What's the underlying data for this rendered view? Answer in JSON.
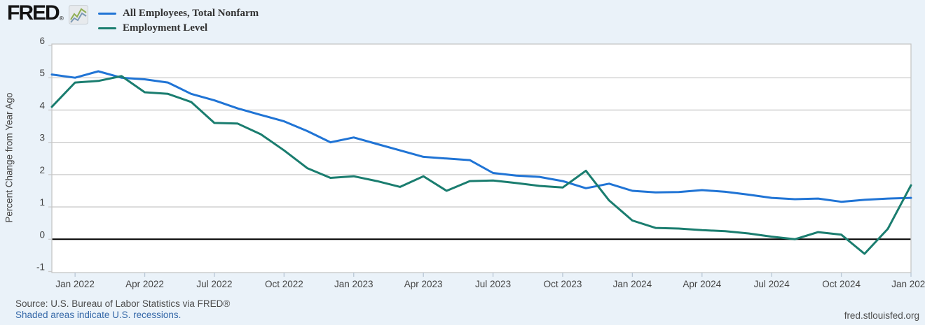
{
  "header": {
    "logo_text": "FRED",
    "logo_reg_mark": "®"
  },
  "chart_data": {
    "type": "line",
    "title": "",
    "xlabel": "",
    "ylabel": "Percent Change from Year Ago",
    "ylim": [
      -1,
      6
    ],
    "grid": true,
    "zero_line": true,
    "legend_position": "top-left",
    "categories": [
      "Dec 2021",
      "Jan 2022",
      "Feb 2022",
      "Mar 2022",
      "Apr 2022",
      "May 2022",
      "Jun 2022",
      "Jul 2022",
      "Aug 2022",
      "Sep 2022",
      "Oct 2022",
      "Nov 2022",
      "Dec 2022",
      "Jan 2023",
      "Feb 2023",
      "Mar 2023",
      "Apr 2023",
      "May 2023",
      "Jun 2023",
      "Jul 2023",
      "Aug 2023",
      "Sep 2023",
      "Oct 2023",
      "Nov 2023",
      "Dec 2023",
      "Jan 2024",
      "Feb 2024",
      "Mar 2024",
      "Apr 2024",
      "May 2024",
      "Jun 2024",
      "Jul 2024",
      "Aug 2024",
      "Sep 2024",
      "Oct 2024",
      "Nov 2024",
      "Dec 2024",
      "Jan 2025"
    ],
    "x_ticks": [
      {
        "index": 1,
        "label": "Jan 2022"
      },
      {
        "index": 4,
        "label": "Apr 2022"
      },
      {
        "index": 7,
        "label": "Jul 2022"
      },
      {
        "index": 10,
        "label": "Oct 2022"
      },
      {
        "index": 13,
        "label": "Jan 2023"
      },
      {
        "index": 16,
        "label": "Apr 2023"
      },
      {
        "index": 19,
        "label": "Jul 2023"
      },
      {
        "index": 22,
        "label": "Oct 2023"
      },
      {
        "index": 25,
        "label": "Jan 2024"
      },
      {
        "index": 28,
        "label": "Apr 2024"
      },
      {
        "index": 31,
        "label": "Jul 2024"
      },
      {
        "index": 34,
        "label": "Oct 2024"
      },
      {
        "index": 37,
        "label": "Jan 2025"
      }
    ],
    "y_ticks": [
      {
        "value": 6,
        "label": "6"
      },
      {
        "value": 5,
        "label": "5"
      },
      {
        "value": 4,
        "label": "4"
      },
      {
        "value": 3,
        "label": "3"
      },
      {
        "value": 2,
        "label": "2"
      },
      {
        "value": 1,
        "label": "1"
      },
      {
        "value": 0,
        "label": "0"
      },
      {
        "value": -1,
        "label": "-1"
      }
    ],
    "series": [
      {
        "name": "All Employees, Total Nonfarm",
        "color": "#2074d5",
        "values": [
          5.1,
          5.0,
          5.2,
          5.0,
          4.95,
          4.85,
          4.5,
          4.3,
          4.05,
          3.85,
          3.65,
          3.35,
          3.0,
          3.15,
          2.95,
          2.75,
          2.55,
          2.5,
          2.45,
          2.05,
          1.97,
          1.93,
          1.8,
          1.58,
          1.72,
          1.5,
          1.45,
          1.46,
          1.52,
          1.47,
          1.38,
          1.28,
          1.24,
          1.26,
          1.16,
          1.22,
          1.26,
          1.28
        ]
      },
      {
        "name": "Employment Level",
        "color": "#1a7d6f",
        "values": [
          4.1,
          4.85,
          4.9,
          5.05,
          4.55,
          4.5,
          4.25,
          3.6,
          3.58,
          3.25,
          2.75,
          2.2,
          1.9,
          1.95,
          1.8,
          1.62,
          1.95,
          1.5,
          1.8,
          1.82,
          1.74,
          1.65,
          1.6,
          2.12,
          1.2,
          0.58,
          0.35,
          0.33,
          0.28,
          0.25,
          0.18,
          0.08,
          0.0,
          0.22,
          0.14,
          -0.45,
          0.32,
          1.67
        ]
      }
    ]
  },
  "footer": {
    "source": "Source: U.S. Bureau of Labor Statistics via FRED®",
    "recession_note": "Shaded areas indicate U.S. recessions.",
    "site": "fred.stlouisfed.org"
  },
  "colors": {
    "background": "#eaf2f9",
    "plot_background": "#ffffff",
    "grid": "#cccccc",
    "border": "#c6c6c6",
    "zero_line": "#000000",
    "axis_text": "#444444",
    "x_tick_mark": "#b9c7d5",
    "link": "#3568a8"
  }
}
